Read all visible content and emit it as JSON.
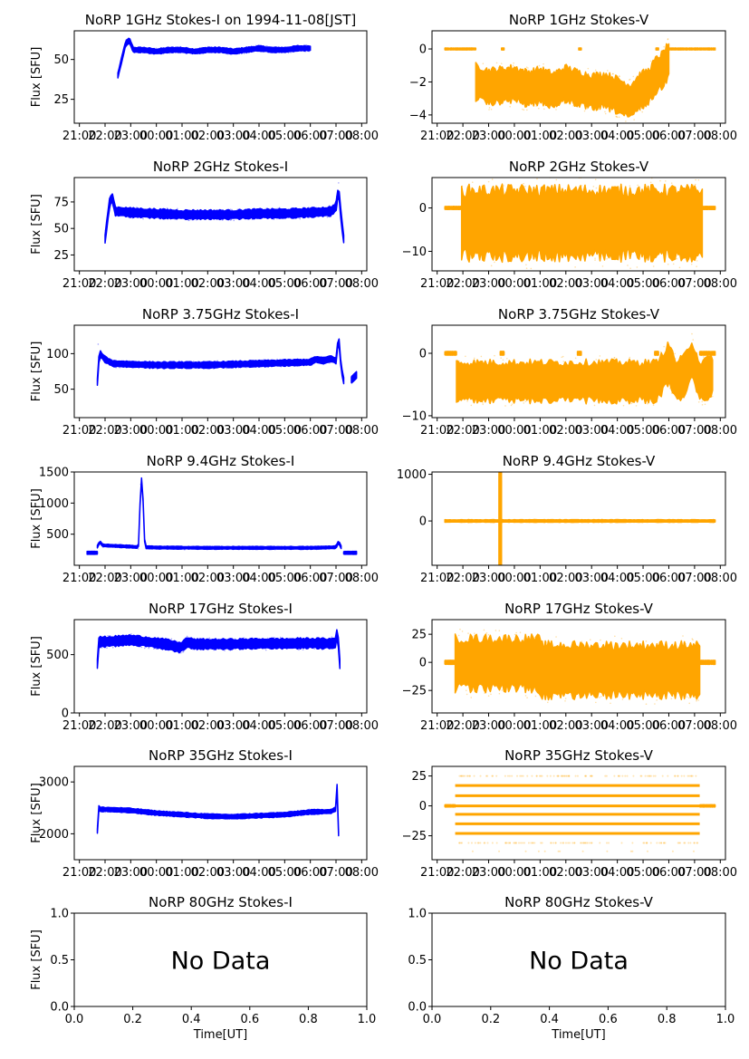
{
  "figure": {
    "date_label": "1994-11-08[JST]",
    "time_tick_labels": [
      "21:00",
      "22:00",
      "23:00",
      "00:00",
      "01:00",
      "02:00",
      "03:00",
      "04:00",
      "05:00",
      "06:00",
      "07:00",
      "08:00"
    ],
    "colors": {
      "stokes_i": "#0000ff",
      "stokes_v": "#ffa500"
    }
  },
  "chart_data": [
    {
      "type": "scatter",
      "id": "1ghz-i",
      "title": "NoRP 1GHz Stokes-I on 1994-11-08[JST]",
      "xlabel": "",
      "ylabel": "Flux [SFU]",
      "x_unit": "hours since 21:00 UT",
      "xlim": [
        -0.2,
        11.2
      ],
      "ylim": [
        10,
        68
      ],
      "yticks": [
        25,
        50
      ],
      "ytick_labels": [
        "25",
        "50"
      ],
      "color": "#0000ff",
      "x": [
        1.5,
        1.65,
        1.8,
        1.95,
        2.1,
        2.5,
        3.0,
        3.5,
        4.0,
        4.5,
        5.0,
        5.5,
        6.0,
        6.5,
        7.0,
        7.5,
        8.0,
        8.5,
        9.0
      ],
      "y": [
        40,
        50,
        60,
        62,
        56,
        56,
        55,
        56,
        56,
        55,
        56,
        56,
        55,
        56,
        57,
        56,
        56,
        57,
        57
      ],
      "band": 1.5
    },
    {
      "type": "scatter",
      "id": "1ghz-v",
      "title": "NoRP 1GHz Stokes-V",
      "xlabel": "",
      "ylabel": "",
      "x_unit": "hours since 21:00 UT",
      "xlim": [
        -0.2,
        11.2
      ],
      "ylim": [
        -4.5,
        1.1
      ],
      "yticks": [
        -4,
        -2,
        0
      ],
      "ytick_labels": [
        "−4",
        "−2",
        "0"
      ],
      "color": "#ffa500",
      "segments": [
        {
          "x": [
            0.3,
            1.5
          ],
          "y": [
            0,
            0
          ],
          "band": 0.05
        },
        {
          "x": [
            2.5,
            2.6
          ],
          "y": [
            0,
            0
          ],
          "band": 0.05
        },
        {
          "x": [
            5.5,
            5.6
          ],
          "y": [
            0,
            0
          ],
          "band": 0.05
        },
        {
          "x": [
            8.5,
            8.6
          ],
          "y": [
            0,
            0
          ],
          "band": 0.05
        },
        {
          "x": [
            9.0,
            10.8
          ],
          "y": [
            0,
            0
          ],
          "band": 0.05
        }
      ],
      "x": [
        1.5,
        2.0,
        2.5,
        3.0,
        3.5,
        4.0,
        4.5,
        5.0,
        5.5,
        6.0,
        6.5,
        7.0,
        7.5,
        7.9,
        8.2,
        8.5,
        8.8,
        9.0
      ],
      "y": [
        -2.0,
        -2.3,
        -2.2,
        -2.1,
        -2.4,
        -2.2,
        -2.5,
        -2.1,
        -2.4,
        -2.6,
        -2.5,
        -2.8,
        -3.2,
        -2.5,
        -2.3,
        -1.6,
        -1.2,
        -0.6
      ],
      "band": 1.0
    },
    {
      "type": "scatter",
      "id": "2ghz-i",
      "title": "NoRP 2GHz Stokes-I",
      "xlabel": "",
      "ylabel": "Flux [SFU]",
      "x_unit": "hours since 21:00 UT",
      "xlim": [
        -0.2,
        11.2
      ],
      "ylim": [
        10,
        98
      ],
      "yticks": [
        25,
        50,
        75
      ],
      "ytick_labels": [
        "25",
        "50",
        "75"
      ],
      "color": "#0000ff",
      "x": [
        1.0,
        1.1,
        1.2,
        1.3,
        1.4,
        1.6,
        2.0,
        3.0,
        4.0,
        5.0,
        6.0,
        7.0,
        8.0,
        9.0,
        9.8,
        10.0,
        10.1,
        10.2,
        10.3
      ],
      "y": [
        40,
        60,
        78,
        78,
        66,
        66,
        65,
        64,
        63,
        63,
        63,
        64,
        64,
        65,
        66,
        70,
        88,
        60,
        40
      ],
      "band": 4
    },
    {
      "type": "scatter",
      "id": "2ghz-v",
      "title": "NoRP 2GHz Stokes-V",
      "xlabel": "",
      "ylabel": "",
      "x_unit": "hours since 21:00 UT",
      "xlim": [
        -0.2,
        11.2
      ],
      "ylim": [
        -14.5,
        7
      ],
      "yticks": [
        -10,
        0
      ],
      "ytick_labels": [
        "−10",
        "0"
      ],
      "color": "#ffa500",
      "segments": [
        {
          "x": [
            0.3,
            0.95
          ],
          "y": [
            0,
            0
          ],
          "band": 0.3
        },
        {
          "x": [
            10.3,
            10.8
          ],
          "y": [
            0,
            0
          ],
          "band": 0.3
        }
      ],
      "x": [
        0.95,
        2.0,
        4.0,
        6.0,
        8.0,
        10.3
      ],
      "y": [
        -3.5,
        -3.5,
        -3.5,
        -3.5,
        -3.5,
        -3.5
      ],
      "band": 7.5
    },
    {
      "type": "scatter",
      "id": "3.75ghz-i",
      "title": "NoRP 3.75GHz Stokes-I",
      "xlabel": "",
      "ylabel": "Flux [SFU]",
      "x_unit": "hours since 21:00 UT",
      "xlim": [
        -0.2,
        11.2
      ],
      "ylim": [
        10,
        140
      ],
      "yticks": [
        50,
        100
      ],
      "ytick_labels": [
        "50",
        "100"
      ],
      "color": "#0000ff",
      "x": [
        0.7,
        0.72,
        0.75,
        0.8,
        1.0,
        1.3,
        2.0,
        3.0,
        4.0,
        5.0,
        6.0,
        7.0,
        8.0,
        9.0,
        9.2,
        9.5,
        9.8,
        10.0,
        10.1,
        10.2,
        10.3
      ],
      "y": [
        60,
        120,
        90,
        100,
        92,
        86,
        85,
        84,
        84,
        84,
        85,
        86,
        87,
        88,
        92,
        90,
        93,
        90,
        125,
        80,
        62
      ],
      "band": 4,
      "extra": [
        {
          "x": [
            10.6,
            10.8
          ],
          "y": [
            63,
            70
          ],
          "band": 4
        }
      ]
    },
    {
      "type": "scatter",
      "id": "3.75ghz-v",
      "title": "NoRP 3.75GHz Stokes-V",
      "xlabel": "",
      "ylabel": "",
      "x_unit": "hours since 21:00 UT",
      "xlim": [
        -0.2,
        11.2
      ],
      "ylim": [
        -10.3,
        4.5
      ],
      "yticks": [
        -10,
        0
      ],
      "ytick_labels": [
        "−10",
        "0"
      ],
      "color": "#ffa500",
      "segments": [
        {
          "x": [
            0.3,
            0.75
          ],
          "y": [
            0,
            0
          ],
          "band": 0.25
        },
        {
          "x": [
            2.45,
            2.6
          ],
          "y": [
            0,
            0
          ],
          "band": 0.25
        },
        {
          "x": [
            5.45,
            5.6
          ],
          "y": [
            0,
            0
          ],
          "band": 0.25
        },
        {
          "x": [
            8.45,
            8.6
          ],
          "y": [
            0,
            0
          ],
          "band": 0.25
        },
        {
          "x": [
            10.2,
            10.8
          ],
          "y": [
            0,
            0
          ],
          "band": 0.25
        }
      ],
      "x": [
        0.75,
        2.0,
        4.0,
        6.0,
        8.0,
        8.5,
        8.7,
        9.0,
        9.3,
        9.6,
        9.9,
        10.2,
        10.5,
        10.7
      ],
      "y": [
        -4.5,
        -4.5,
        -4.5,
        -4.5,
        -4.5,
        -4.5,
        -3.5,
        -1.5,
        -4.5,
        -3.5,
        -1.0,
        -4.5,
        -4.0,
        -3.5
      ],
      "band": 3.0
    },
    {
      "type": "scatter",
      "id": "9.4ghz-i",
      "title": "NoRP 9.4GHz Stokes-I",
      "xlabel": "",
      "ylabel": "Flux [SFU]",
      "x_unit": "hours since 21:00 UT",
      "xlim": [
        -0.2,
        11.2
      ],
      "ylim": [
        0,
        1500
      ],
      "yticks": [
        500,
        1000,
        1500
      ],
      "ytick_labels": [
        "500",
        "1000",
        "1500"
      ],
      "color": "#0000ff",
      "x": [
        0.7,
        0.8,
        0.9,
        1.5,
        2.0,
        2.3,
        2.4,
        2.45,
        2.55,
        2.6,
        3.0,
        5.0,
        7.0,
        9.0,
        10.0,
        10.1,
        10.2
      ],
      "y": [
        300,
        380,
        320,
        310,
        300,
        290,
        1380,
        1380,
        300,
        290,
        285,
        280,
        280,
        280,
        290,
        380,
        290
      ],
      "band": 20,
      "extra": [
        {
          "x": [
            0.3,
            0.7
          ],
          "y": [
            200,
            200
          ],
          "band": 20
        },
        {
          "x": [
            10.3,
            10.8
          ],
          "y": [
            200,
            200
          ],
          "band": 20
        }
      ]
    },
    {
      "type": "scatter",
      "id": "9.4ghz-v",
      "title": "NoRP 9.4GHz Stokes-V",
      "xlabel": "",
      "ylabel": "",
      "x_unit": "hours since 21:00 UT",
      "xlim": [
        -0.2,
        11.2
      ],
      "ylim": [
        -950,
        1050
      ],
      "yticks": [
        0,
        1000
      ],
      "ytick_labels": [
        "0",
        "1000"
      ],
      "color": "#ffa500",
      "segments": [
        {
          "x": [
            0.3,
            10.8
          ],
          "y": [
            0,
            0
          ],
          "band": 25
        }
      ],
      "x": [
        2.4,
        2.5
      ],
      "y": [
        0,
        0
      ],
      "band": 950
    },
    {
      "type": "scatter",
      "id": "17ghz-i",
      "title": "NoRP 17GHz Stokes-I",
      "xlabel": "",
      "ylabel": "Flux [SFU]",
      "x_unit": "hours since 21:00 UT",
      "xlim": [
        -0.2,
        11.2
      ],
      "ylim": [
        0,
        800
      ],
      "yticks": [
        0,
        500
      ],
      "ytick_labels": [
        "0",
        "500"
      ],
      "color": "#0000ff",
      "x": [
        0.7,
        0.75,
        0.8,
        1.0,
        2.0,
        3.0,
        3.5,
        3.9,
        4.0,
        4.2,
        4.5,
        5.0,
        6.0,
        7.0,
        8.0,
        9.0,
        9.8,
        10.0,
        10.05,
        10.1,
        10.15
      ],
      "y": [
        420,
        600,
        610,
        610,
        625,
        600,
        585,
        560,
        570,
        605,
        590,
        590,
        590,
        595,
        595,
        598,
        595,
        600,
        720,
        580,
        420
      ],
      "band": 40
    },
    {
      "type": "scatter",
      "id": "17ghz-v",
      "title": "NoRP 17GHz Stokes-V",
      "xlabel": "",
      "ylabel": "",
      "x_unit": "hours since 21:00 UT",
      "xlim": [
        -0.2,
        11.2
      ],
      "ylim": [
        -45,
        38
      ],
      "yticks": [
        -25,
        0,
        25
      ],
      "ytick_labels": [
        "−25",
        "0",
        "25"
      ],
      "color": "#ffa500",
      "segments": [
        {
          "x": [
            0.3,
            0.7
          ],
          "y": [
            0,
            0
          ],
          "band": 1.5
        },
        {
          "x": [
            10.2,
            10.8
          ],
          "y": [
            0,
            0
          ],
          "band": 1.5
        }
      ],
      "x": [
        0.7,
        2.0,
        3.95,
        4.05,
        6.0,
        8.0,
        10.2
      ],
      "y": [
        -1,
        -1,
        -1,
        -7,
        -7,
        -7,
        -7
      ],
      "band": 22
    },
    {
      "type": "scatter",
      "id": "35ghz-i",
      "title": "NoRP 35GHz Stokes-I",
      "xlabel": "",
      "ylabel": "Flux [SFU]",
      "x_unit": "hours since 21:00 UT",
      "xlim": [
        -0.2,
        11.2
      ],
      "ylim": [
        1500,
        3300
      ],
      "yticks": [
        2000,
        3000
      ],
      "ytick_labels": [
        "2000",
        "3000"
      ],
      "color": "#0000ff",
      "x": [
        0.7,
        0.72,
        0.75,
        0.8,
        1.0,
        2.0,
        3.0,
        4.0,
        5.0,
        6.0,
        7.0,
        8.0,
        9.0,
        9.8,
        10.0,
        10.05,
        10.1
      ],
      "y": [
        2050,
        2700,
        2500,
        2470,
        2470,
        2450,
        2400,
        2370,
        2340,
        2330,
        2350,
        2370,
        2420,
        2430,
        2480,
        3000,
        2000
      ],
      "band": 40
    },
    {
      "type": "scatter",
      "id": "35ghz-v",
      "title": "NoRP 35GHz Stokes-V",
      "xlabel": "",
      "ylabel": "",
      "x_unit": "hours since 21:00 UT",
      "xlim": [
        -0.2,
        11.2
      ],
      "ylim": [
        -45,
        33
      ],
      "yticks": [
        -25,
        0,
        25
      ],
      "ytick_labels": [
        "−25",
        "0",
        "25"
      ],
      "color": "#ffa500",
      "segments": [
        {
          "x": [
            0.3,
            0.7
          ],
          "y": [
            0,
            0
          ],
          "band": 0.8
        },
        {
          "x": [
            10.2,
            10.8
          ],
          "y": [
            0,
            0
          ],
          "band": 0.8
        }
      ],
      "levels": [
        25,
        17,
        8.5,
        0,
        -7,
        -15,
        -23,
        -31
      ],
      "levels_faint": [
        25,
        -31
      ],
      "levels_xrange": [
        0.7,
        10.2
      ],
      "x": [],
      "y": [],
      "band": 0
    },
    {
      "type": "empty",
      "id": "80ghz-i",
      "title": "NoRP 80GHz Stokes-I",
      "xlabel": "Time[UT]",
      "ylabel": "Flux [SFU]",
      "xlim": [
        0,
        1
      ],
      "ylim": [
        0,
        1
      ],
      "xticks": [
        0.0,
        0.2,
        0.4,
        0.6,
        0.8,
        1.0
      ],
      "xtick_labels": [
        "0.0",
        "0.2",
        "0.4",
        "0.6",
        "0.8",
        "1.0"
      ],
      "yticks": [
        0.0,
        0.5,
        1.0
      ],
      "ytick_labels": [
        "0.0",
        "0.5",
        "1.0"
      ],
      "annotation": "No Data"
    },
    {
      "type": "empty",
      "id": "80ghz-v",
      "title": "NoRP 80GHz Stokes-V",
      "xlabel": "Time[UT]",
      "ylabel": "",
      "xlim": [
        0,
        1
      ],
      "ylim": [
        0,
        1
      ],
      "xticks": [
        0.0,
        0.2,
        0.4,
        0.6,
        0.8,
        1.0
      ],
      "xtick_labels": [
        "0.0",
        "0.2",
        "0.4",
        "0.6",
        "0.8",
        "1.0"
      ],
      "yticks": [
        0.0,
        0.5,
        1.0
      ],
      "ytick_labels": [
        "0.0",
        "0.5",
        "1.0"
      ],
      "annotation": "No Data"
    }
  ]
}
